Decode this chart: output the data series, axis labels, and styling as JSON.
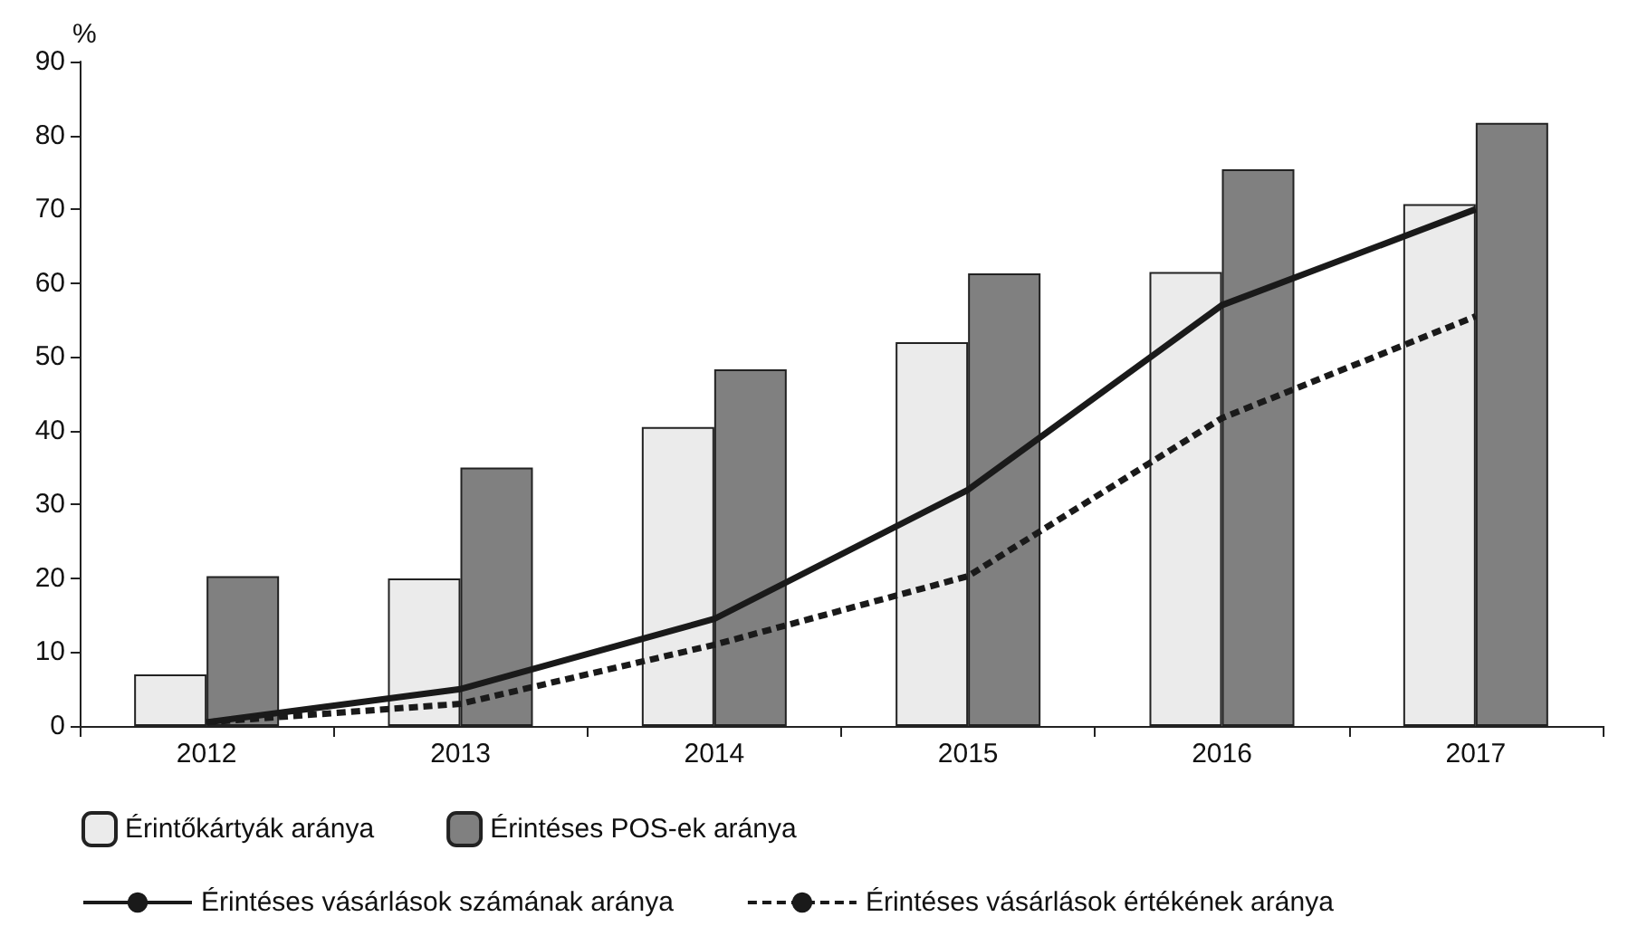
{
  "chart_data": {
    "type": "bar",
    "ylabel": "%",
    "categories": [
      "2012",
      "2013",
      "2014",
      "2015",
      "2016",
      "2017"
    ],
    "ylim": [
      0,
      90
    ],
    "yticks": [
      0,
      10,
      20,
      30,
      40,
      50,
      60,
      70,
      80,
      90
    ],
    "grid": false,
    "legend": "bottom",
    "marker": "none",
    "series": [
      {
        "name": "Érintőkártyák aránya",
        "color": "#ebebeb",
        "values": [
          7,
          20,
          40.5,
          52,
          61.5,
          70.7
        ]
      },
      {
        "name": "Érintéses POS-ek aránya",
        "color": "#808080",
        "values": [
          20.3,
          35,
          48.3,
          61.3,
          75.4,
          81.7
        ]
      },
      {
        "name": "Érintéses vásárlások számának aránya",
        "type": "line",
        "line_style": "solid",
        "color": "#1a1a1a",
        "values": [
          0.5,
          5,
          14.5,
          32,
          57,
          70
        ]
      },
      {
        "name": "Érintéses vásárlások értékének aránya",
        "type": "line",
        "line_style": "dashed",
        "color": "#1a1a1a",
        "values": [
          0.5,
          3,
          11,
          20.3,
          41.7,
          55.5
        ]
      }
    ]
  }
}
